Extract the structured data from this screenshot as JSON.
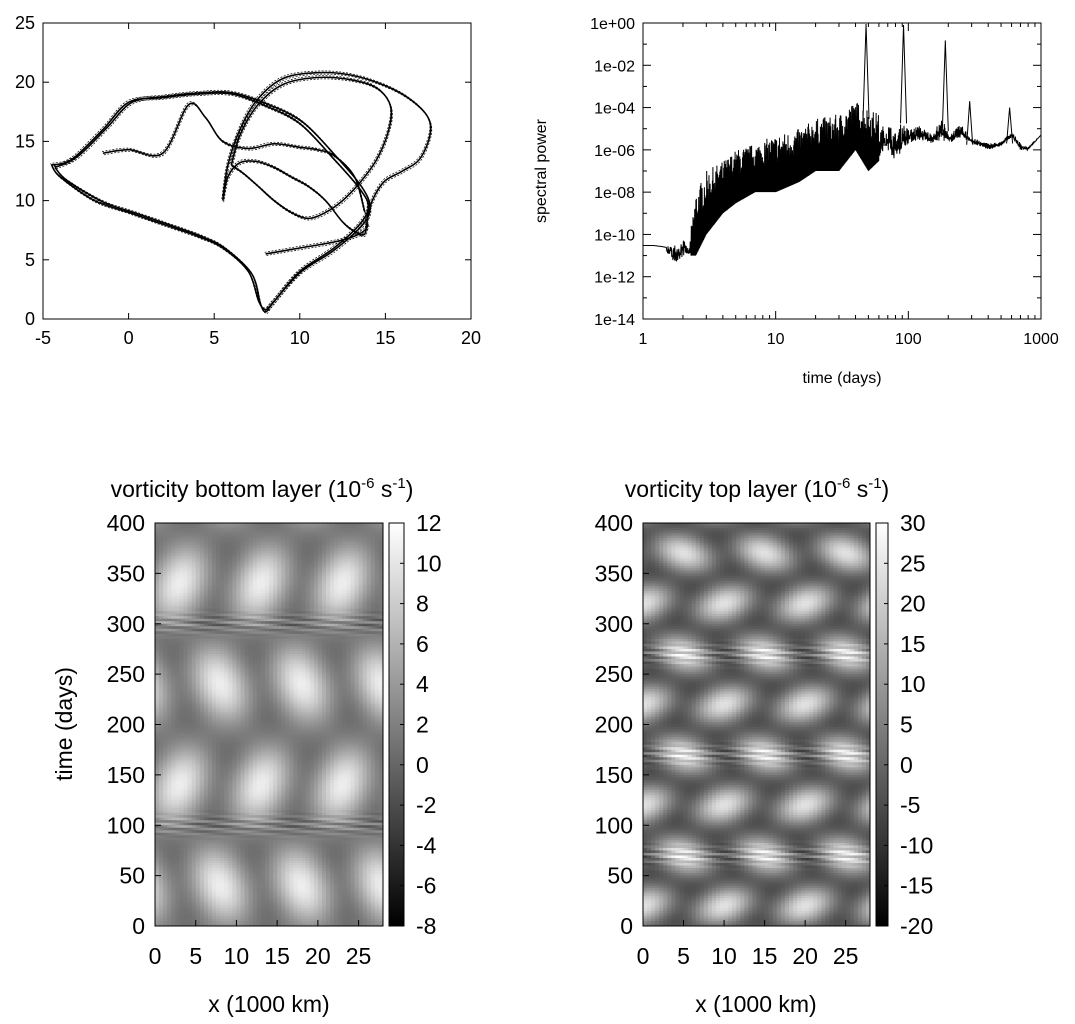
{
  "chart_data": [
    {
      "type": "line",
      "title": "",
      "xlabel": "",
      "ylabel": "",
      "xlim": [
        -5,
        20
      ],
      "ylim": [
        0,
        25
      ],
      "xticks": [
        "-5",
        "0",
        "5",
        "10",
        "15",
        "20"
      ],
      "yticks": [
        "0",
        "5",
        "10",
        "15",
        "20",
        "25"
      ],
      "series": [
        {
          "x": [
            -4.5,
            -4,
            -2,
            0,
            2,
            4,
            5.5,
            7,
            7.6,
            8,
            8.5,
            10,
            12,
            13.5,
            14,
            13.5,
            12,
            10,
            8,
            6,
            4,
            2,
            0,
            -1.5,
            -3.3,
            -4.5
          ],
          "y": [
            13,
            12,
            10,
            9,
            8,
            7,
            6,
            4,
            1.5,
            0.8,
            1.5,
            4,
            6,
            8,
            9.5,
            11,
            13.5,
            16.5,
            18,
            19,
            19,
            18.7,
            18.3,
            16,
            13.5,
            13
          ]
        },
        {
          "x": [
            -4.3,
            -3.6,
            -1.5,
            0.5,
            2.5,
            4.4,
            5.7,
            7.2,
            7.7,
            8,
            8.4,
            10,
            12,
            13.7,
            14.1,
            13.6,
            12.2,
            10.2,
            8.2,
            6.1,
            4.2,
            2.2,
            0.2,
            -1.3,
            -3,
            -4.3
          ],
          "y": [
            12.8,
            11.7,
            9.9,
            8.9,
            7.9,
            6.9,
            5.9,
            3.8,
            1.3,
            0.6,
            1.3,
            3.9,
            5.8,
            8,
            9.5,
            11.2,
            13.6,
            16.6,
            18.1,
            19.1,
            19.1,
            18.8,
            18.3,
            16.1,
            13.7,
            12.8
          ]
        },
        {
          "x": [
            5.5,
            5.8,
            6.5,
            7.5,
            9,
            11,
            13,
            15,
            16.5,
            17.5,
            17.6,
            17,
            16,
            15,
            14.4,
            14,
            13.8,
            13.2,
            12.5,
            11.5,
            10.5,
            9.5,
            8.5,
            7.5,
            6.5,
            5.8,
            5.5
          ],
          "y": [
            10,
            13,
            16,
            18.5,
            20.3,
            20.8,
            20.6,
            19.7,
            18.5,
            17,
            15.5,
            13.5,
            12.5,
            11.7,
            10.5,
            9,
            7.2,
            7.4,
            8.2,
            10,
            11.2,
            12,
            12.8,
            13.3,
            13.2,
            12,
            10
          ]
        },
        {
          "x": [
            6,
            6.5,
            7.5,
            9,
            11,
            13,
            14.5,
            15.3,
            15.2,
            14.5,
            13.5,
            12.5,
            11.5,
            10.5,
            9.5,
            8.5,
            7.5,
            6.7,
            6.2,
            6
          ],
          "y": [
            13,
            15.5,
            18,
            19.8,
            20.4,
            20.2,
            19.5,
            18,
            16,
            13.5,
            11.5,
            10,
            9,
            8.5,
            9,
            10,
            11.3,
            12.3,
            12.8,
            13
          ]
        },
        {
          "x": [
            -1.5,
            0,
            2,
            3.5,
            4.5,
            5.5,
            7,
            8.5,
            10,
            11,
            12,
            13.2,
            13.8
          ],
          "y": [
            14,
            14.3,
            14,
            18.1,
            17,
            15,
            14.4,
            14.8,
            14.5,
            14.3,
            13.8,
            12,
            9
          ]
        },
        {
          "x": [
            8,
            10,
            12,
            13.2,
            13.8,
            14
          ],
          "y": [
            5.5,
            6,
            6.5,
            7,
            7.5,
            8
          ]
        }
      ]
    },
    {
      "type": "line",
      "title": "",
      "xlabel": "time (days)",
      "ylabel": "spectral power",
      "xscale": "log",
      "yscale": "log",
      "xlim": [
        1,
        1000
      ],
      "ylim": [
        1e-14,
        1
      ],
      "xticks": [
        "1",
        "10",
        "100",
        "1000"
      ],
      "yticks": [
        "1e-14",
        "1e-12",
        "1e-10",
        "1e-08",
        "1e-06",
        "1e-04",
        "1e-02",
        "1e+00"
      ],
      "series": [
        {
          "x": [
            1,
            1.2,
            1.4,
            1.6,
            1.8,
            2,
            2.2,
            2.5,
            3,
            4,
            5,
            7,
            10,
            15,
            20,
            30,
            40,
            50,
            60,
            70,
            80,
            90,
            100,
            120,
            150,
            180,
            200,
            250,
            300,
            400,
            500,
            600,
            700,
            800,
            1000
          ],
          "y": [
            3e-11,
            3e-11,
            3.5e-11,
            5e-11,
            2e-10,
            2e-10,
            3e-11,
            1e-08,
            1e-07,
            3e-07,
            1e-06,
            2e-06,
            5e-06,
            1e-05,
            3e-05,
            5e-05,
            0.0002,
            0.0001,
            5e-05,
            0.0001,
            3e-05,
            0.0001,
            2e-05,
            3e-05,
            1e-05,
            0.0001,
            1e-05,
            3e-05,
            5e-06,
            3e-06,
            3e-06,
            1e-05,
            3e-06,
            1.5e-06,
            5e-06
          ]
        },
        {
          "x": [
            1,
            1.2,
            1.4,
            1.6,
            1.8,
            2,
            2.2,
            2.5,
            3,
            4,
            5,
            7,
            10,
            15,
            20,
            30,
            40,
            50,
            60,
            70,
            80,
            90,
            100,
            120,
            150,
            180,
            200,
            250,
            300,
            400,
            500,
            600,
            700,
            800,
            1000
          ],
          "y": [
            3e-11,
            3e-11,
            2e-11,
            1e-11,
            3e-12,
            1e-11,
            1e-11,
            1e-11,
            1e-10,
            1e-09,
            3e-09,
            1e-08,
            1e-08,
            3e-08,
            1e-07,
            1e-07,
            1e-06,
            1e-07,
            3e-07,
            1e-06,
            3e-07,
            1e-06,
            2e-06,
            3e-06,
            2e-06,
            3e-06,
            2e-06,
            4e-06,
            2e-06,
            1e-06,
            1.5e-06,
            4e-06,
            1e-06,
            1e-06,
            5e-06
          ]
        }
      ],
      "peaks": [
        {
          "x": 48,
          "y": 0.9
        },
        {
          "x": 92,
          "y": 0.8
        },
        {
          "x": 190,
          "y": 0.15
        },
        {
          "x": 290,
          "y": 0.0002
        },
        {
          "x": 580,
          "y": 0.0001
        }
      ]
    },
    {
      "type": "heatmap",
      "title": "vorticity bottom layer (10-6 s-1)",
      "title_parts": [
        "vorticity bottom layer (10",
        "-6",
        " s",
        "-1",
        ")"
      ],
      "xlabel": "x (1000 km)",
      "ylabel": "time (days)",
      "xlim": [
        0,
        28
      ],
      "ylim": [
        0,
        400
      ],
      "xticks": [
        "0",
        "5",
        "10",
        "15",
        "20",
        "25"
      ],
      "yticks": [
        "0",
        "50",
        "100",
        "150",
        "200",
        "250",
        "300",
        "350",
        "400"
      ],
      "colorbar": {
        "min": -8,
        "max": 12,
        "ticks": [
          "-8",
          "-6",
          "-4",
          "-2",
          "0",
          "2",
          "4",
          "6",
          "8",
          "10",
          "12"
        ]
      },
      "wavelength_x": 10,
      "period_days": 200,
      "phase_x": 3,
      "phase_t": 140,
      "mean": 4,
      "amplitude": 8,
      "ripple_days": [
        100,
        300
      ]
    },
    {
      "type": "heatmap",
      "title": "vorticity top layer (10-6 s-1)",
      "title_parts": [
        "vorticity top layer (10",
        "-6",
        " s",
        "-1",
        ")"
      ],
      "xlabel": "x (1000 km)",
      "ylabel": "",
      "xlim": [
        0,
        28
      ],
      "ylim": [
        0,
        400
      ],
      "xticks": [
        "0",
        "5",
        "10",
        "15",
        "20",
        "25"
      ],
      "yticks": [
        "0",
        "50",
        "100",
        "150",
        "200",
        "250",
        "300",
        "350",
        "400"
      ],
      "colorbar": {
        "min": -20,
        "max": 30,
        "ticks": [
          "-20",
          "-15",
          "-10",
          "-5",
          "0",
          "5",
          "10",
          "15",
          "20",
          "25",
          "30"
        ]
      },
      "wavelength_x": 10,
      "period_days": 100,
      "phase_x": 0,
      "phase_t": 20,
      "mean": 5,
      "amplitude": 23,
      "ripple_days": [
        70,
        170,
        270
      ]
    }
  ]
}
